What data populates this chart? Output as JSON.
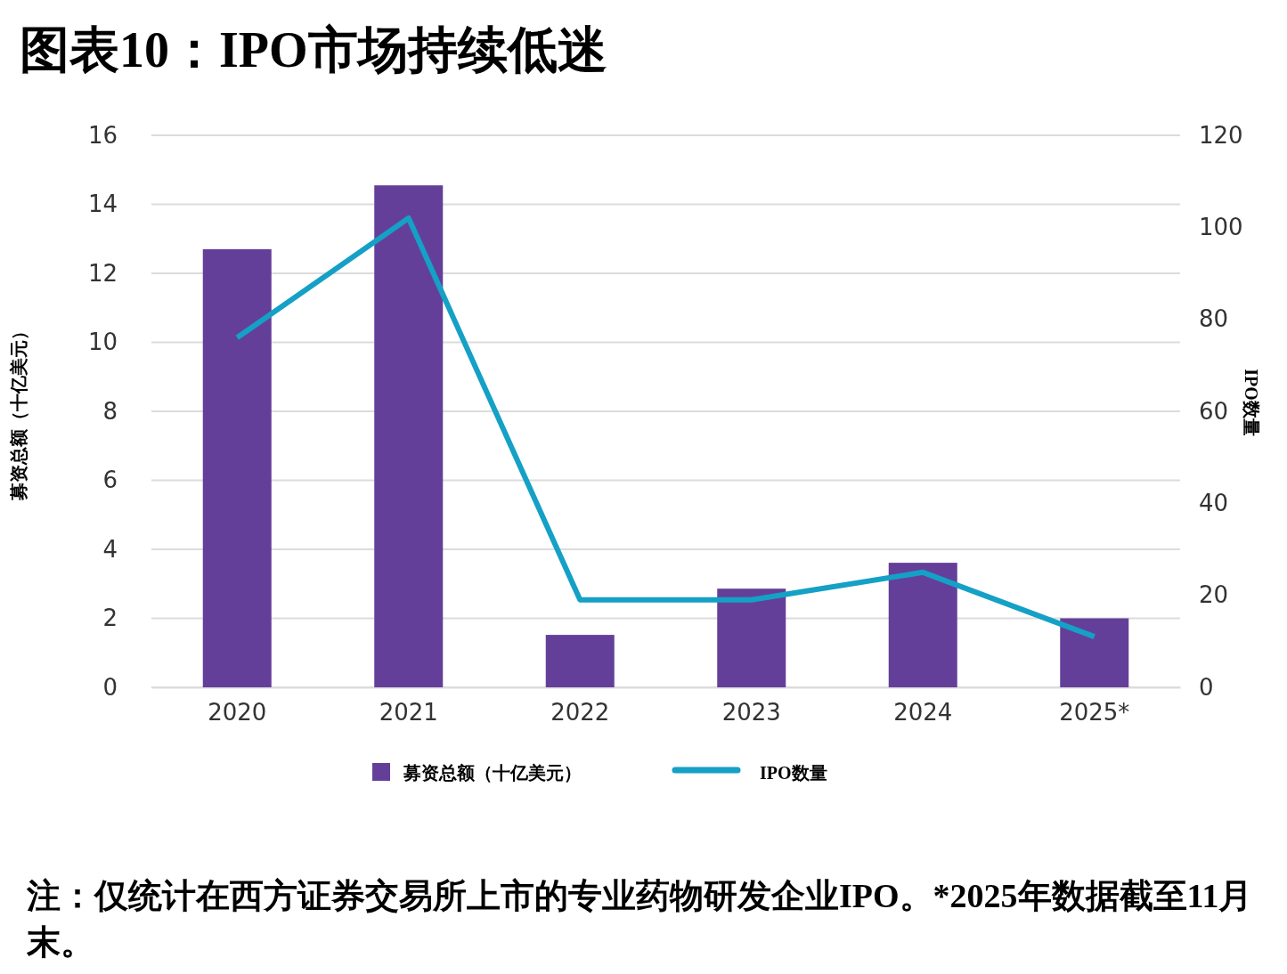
{
  "chart_data": {
    "type": "bar",
    "title": "图表10：IPO市场持续低迷",
    "categories": [
      "2020",
      "2021",
      "2022",
      "2023",
      "2024",
      "2025*"
    ],
    "series": [
      {
        "name": "募资总额（十亿美元）",
        "color": "#643f99",
        "values": [
          12.7,
          14.55,
          1.52,
          2.86,
          3.61,
          2.0
        ]
      },
      {
        "name": "IPO数量",
        "color": "#15a0c6",
        "type": "line",
        "axis": "y2",
        "values": [
          76,
          102,
          19,
          19,
          25,
          11
        ]
      }
    ],
    "ylabel": "募资总额（十亿美元）",
    "y2label": "IPO数量",
    "ylim": [
      0,
      16
    ],
    "yticks": [
      0,
      2,
      4,
      6,
      8,
      10,
      12,
      14,
      16
    ],
    "y2lim": [
      0,
      120
    ],
    "y2ticks": [
      0,
      20,
      40,
      60,
      80,
      100,
      120
    ],
    "grid": "y",
    "legend": "bottom",
    "marker": "none",
    "line_style": "solid",
    "annotations": [
      "注：仅统计在西方证券交易所上市的专业药物研发企业IPO。*2025年数据截至11月末。"
    ]
  }
}
